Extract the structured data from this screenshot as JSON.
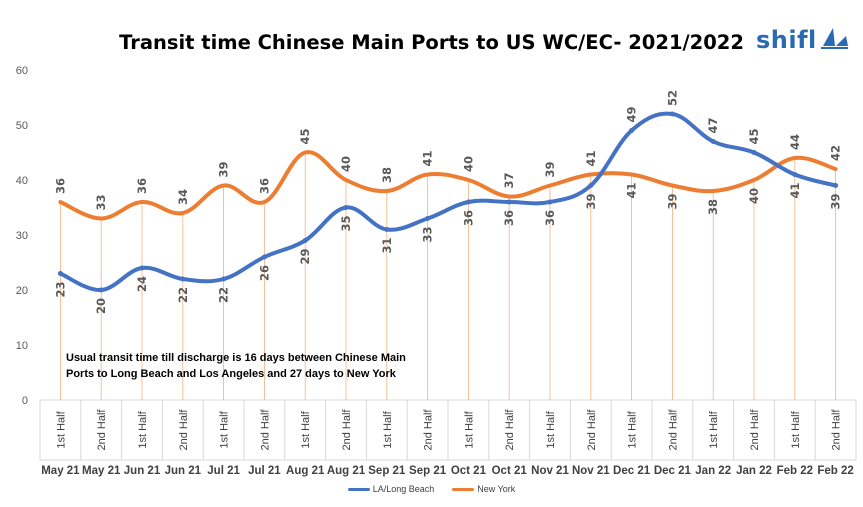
{
  "logo": {
    "text": "shifl"
  },
  "note": "Usual transit time till discharge is 16 days between Chinese Main Ports to Long Beach and Los Angeles and 27 days to New York",
  "chart_data": {
    "type": "line",
    "title": "Transit time Chinese Main Ports to US WC/EC- 2021/2022",
    "ylim": [
      0,
      60
    ],
    "yticks": [
      0,
      10,
      20,
      30,
      40,
      50,
      60
    ],
    "categories": [
      [
        "1st Half",
        "May 21"
      ],
      [
        "2nd Half",
        "May 21"
      ],
      [
        "1st Half",
        "Jun 21"
      ],
      [
        "2nd Half",
        "Jun 21"
      ],
      [
        "1st Half",
        "Jul 21"
      ],
      [
        "2nd Half",
        "Jul 21"
      ],
      [
        "1st Half",
        "Aug 21"
      ],
      [
        "2nd Half",
        "Aug 21"
      ],
      [
        "1st Half",
        "Sep 21"
      ],
      [
        "2nd Half",
        "Sep 21"
      ],
      [
        "1st Half",
        "Oct 21"
      ],
      [
        "2nd Half",
        "Oct 21"
      ],
      [
        "1st Half",
        "Nov 21"
      ],
      [
        "2nd Half",
        "Nov 21"
      ],
      [
        "1st Half",
        "Dec 21"
      ],
      [
        "2nd Half",
        "Dec 21"
      ],
      [
        "1st Half",
        "Jan 22"
      ],
      [
        "2nd Half",
        "Jan 22"
      ],
      [
        "1st Half",
        "Feb 22"
      ],
      [
        "2nd Half",
        "Feb 22"
      ]
    ],
    "series": [
      {
        "name": "LA/Long Beach",
        "color": "#4472c4",
        "values": [
          23,
          20,
          24,
          22,
          22,
          26,
          29,
          35,
          31,
          33,
          36,
          36,
          36,
          39,
          49,
          52,
          47,
          45,
          41,
          39
        ]
      },
      {
        "name": "New York",
        "color": "#ed7d31",
        "values": [
          36,
          33,
          36,
          34,
          39,
          36,
          45,
          40,
          38,
          41,
          40,
          37,
          39,
          41,
          41,
          39,
          38,
          40,
          44,
          42
        ]
      }
    ],
    "grid": false,
    "legend": "bottom"
  }
}
